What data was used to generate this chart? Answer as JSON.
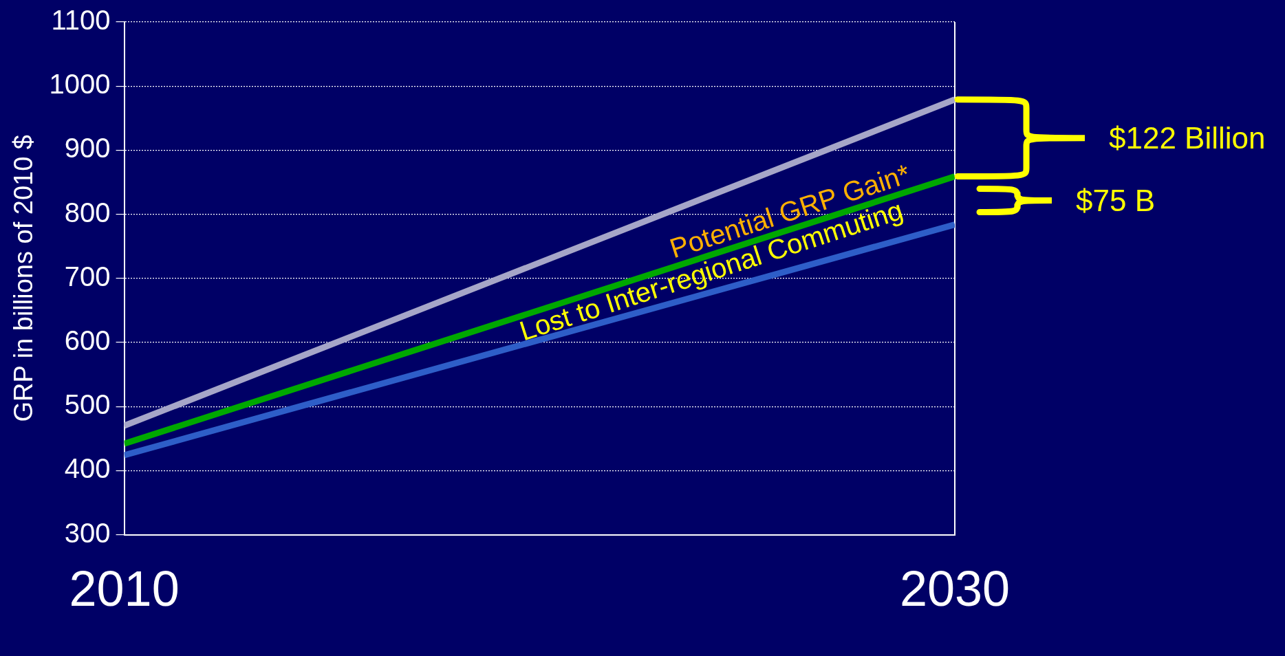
{
  "chart_data": {
    "type": "line",
    "ylabel": "GRP in billions of 2010 $",
    "x": [
      2010,
      2030
    ],
    "xlim": [
      2010,
      2030
    ],
    "xticks": [
      2010,
      2030
    ],
    "ylim": [
      300,
      1100
    ],
    "yticks": [
      300,
      400,
      500,
      600,
      700,
      800,
      900,
      1000,
      1100
    ],
    "grid": true,
    "legend": false,
    "marker": "none",
    "line_style": "solid",
    "series": [
      {
        "color": "#a6a6c8",
        "values": [
          470,
          979
        ]
      },
      {
        "color": "#00a800",
        "values": [
          442,
          859
        ]
      },
      {
        "color": "#2e5ec8",
        "values": [
          424,
          784
        ]
      }
    ],
    "annotations": [
      "Potential GRP Gain*",
      "Lost to Inter-regional Commuting",
      "$122 Billion",
      "$75 B"
    ]
  }
}
